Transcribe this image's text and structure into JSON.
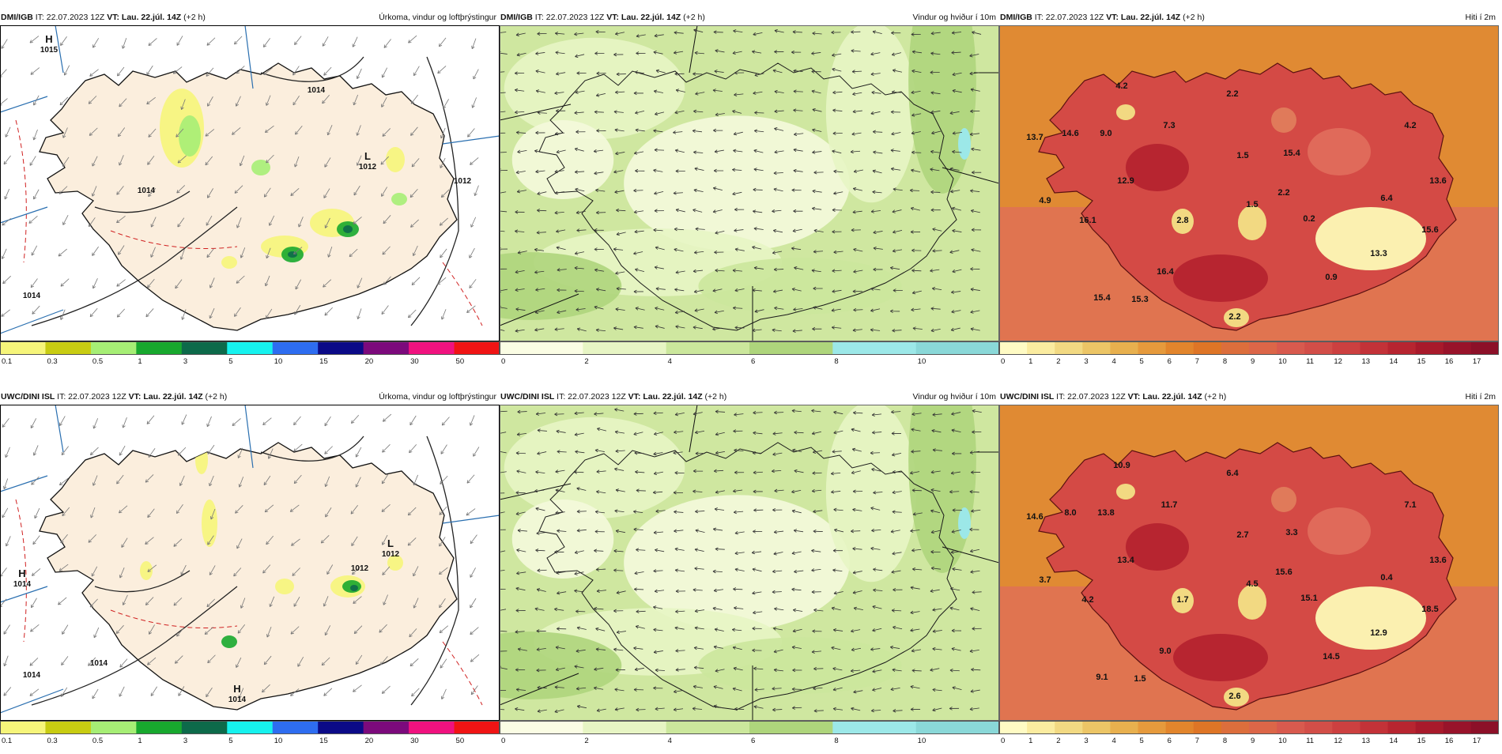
{
  "panels": [
    {
      "source": "DMI/IGB",
      "it": "IT: 22.07.2023 12Z",
      "vt": "VT: Lau. 22.júl. 14Z",
      "lead": "(+2 h)",
      "title": "Úrkoma, vindur og loftþrýstingur",
      "kind": "precip",
      "pressure_labels": [
        {
          "text": "H",
          "sub": "1015"
        },
        {
          "text": "L",
          "sub": "1012"
        },
        {
          "text": "1014"
        },
        {
          "text": "1014"
        },
        {
          "text": "1014"
        },
        {
          "text": "1012"
        }
      ]
    },
    {
      "source": "DMI/IGB",
      "it": "IT: 22.07.2023 12Z",
      "vt": "VT: Lau. 22.júl. 14Z",
      "lead": "(+2 h)",
      "title": "Vindur og hviður í 10m",
      "kind": "wind"
    },
    {
      "source": "DMI/IGB",
      "it": "IT: 22.07.2023 12Z",
      "vt": "VT: Lau. 22.júl. 14Z",
      "lead": "(+2 h)",
      "title": "Hiti í 2m",
      "kind": "temp",
      "temp_labels": [
        "4.2",
        "2.2",
        "13.7",
        "14.6",
        "9.0",
        "7.3",
        "1.5",
        "15.4",
        "4.2",
        "13.6",
        "12.9",
        "2.2",
        "4.9",
        "16.1",
        "2.8",
        "1.5",
        "0.2",
        "6.4",
        "15.6",
        "16.4",
        "13.3",
        "0.9",
        "15.4",
        "15.3",
        "2.2"
      ]
    },
    {
      "source": "UWC/DINI ISL",
      "it": "IT: 22.07.2023 12Z",
      "vt": "VT: Lau. 22.júl. 14Z",
      "lead": "(+2 h)",
      "title": "Úrkoma, vindur og loftþrýstingur",
      "kind": "precip",
      "pressure_labels": [
        {
          "text": "H",
          "sub": "1014"
        },
        {
          "text": "L",
          "sub": "1012"
        },
        {
          "text": "H",
          "sub": "1014"
        },
        {
          "text": "1014"
        },
        {
          "text": "1014"
        },
        {
          "text": "1012"
        }
      ]
    },
    {
      "source": "UWC/DINI ISL",
      "it": "IT: 22.07.2023 12Z",
      "vt": "VT: Lau. 22.júl. 14Z",
      "lead": "(+2 h)",
      "title": "Vindur og hviður í 10m",
      "kind": "wind"
    },
    {
      "source": "UWC/DINI ISL",
      "it": "IT: 22.07.2023 12Z",
      "vt": "VT: Lau. 22.júl. 14Z",
      "lead": "(+2 h)",
      "title": "Hiti í 2m",
      "kind": "temp",
      "temp_labels": [
        "10.9",
        "6.4",
        "14.6",
        "8.0",
        "13.8",
        "11.7",
        "2.7",
        "3.3",
        "7.1",
        "13.6",
        "13.4",
        "15.6",
        "3.7",
        "4.2",
        "1.7",
        "4.5",
        "15.1",
        "0.4",
        "18.5",
        "9.0",
        "12.9",
        "14.5",
        "9.1",
        "1.5",
        "2.6"
      ]
    }
  ],
  "legends": {
    "precip": {
      "colors": [
        "#f6f57a",
        "#c8cc12",
        "#a6ee75",
        "#18a82e",
        "#0d6a4a",
        "#16f2ee",
        "#2e6df0",
        "#0b0a87",
        "#7c0a7c",
        "#f0127f",
        "#f01414"
      ],
      "ticks": [
        "0.1",
        "0.3",
        "0.5",
        "1",
        "3",
        "5",
        "10",
        "15",
        "20",
        "30",
        "50"
      ]
    },
    "wind": {
      "colors": [
        "#fbfde4",
        "#e7f5c4",
        "#cbe79c",
        "#aed57c",
        "#9ce8e8",
        "#8ad8d8"
      ],
      "ticks": [
        "0",
        "2",
        "4",
        "6",
        "8",
        "10"
      ]
    },
    "temp": {
      "colors": [
        "#fffbc4",
        "#fbeca0",
        "#f2d982",
        "#ecc566",
        "#e8b04e",
        "#e69a3c",
        "#e2852c",
        "#de7526",
        "#dc6e3c",
        "#dc6648",
        "#d85a4e",
        "#d24e48",
        "#cc4040",
        "#c33238",
        "#b72530",
        "#a81a2b",
        "#98132a",
        "#8c1028"
      ],
      "ticks": [
        "0",
        "1",
        "2",
        "3",
        "4",
        "5",
        "6",
        "7",
        "8",
        "9",
        "10",
        "11",
        "12",
        "13",
        "14",
        "15",
        "16",
        "17"
      ]
    }
  }
}
